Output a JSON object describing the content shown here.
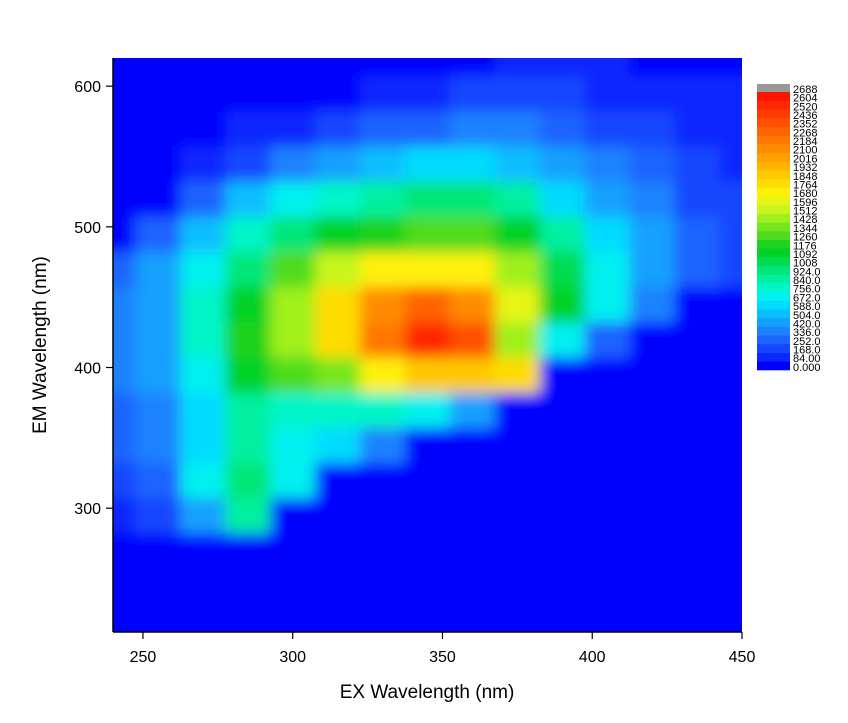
{
  "chart_data": {
    "type": "contour",
    "x_label": "EX Wavelength (nm)",
    "y_label": "EM Wavelength (nm)",
    "xlim": [
      240,
      450
    ],
    "ylim": [
      212,
      620
    ],
    "xticks": [
      250,
      300,
      350,
      400,
      450
    ],
    "yticks": [
      300,
      400,
      500,
      600
    ],
    "x": [
      240,
      255,
      270,
      285,
      300,
      315,
      330,
      345,
      360,
      375,
      390,
      405,
      420,
      435,
      450
    ],
    "y": [
      220,
      245,
      270,
      295,
      320,
      345,
      370,
      395,
      420,
      445,
      470,
      495,
      520,
      545,
      570,
      595,
      620
    ],
    "z": [
      [
        20,
        20,
        20,
        20,
        20,
        20,
        20,
        20,
        20,
        20,
        20,
        20,
        20,
        20,
        20
      ],
      [
        20,
        20,
        20,
        20,
        20,
        20,
        20,
        20,
        20,
        20,
        20,
        20,
        20,
        20,
        20
      ],
      [
        20,
        20,
        20,
        20,
        20,
        20,
        20,
        20,
        20,
        20,
        20,
        20,
        20,
        20,
        20
      ],
      [
        150,
        200,
        500,
        900,
        20,
        20,
        20,
        20,
        20,
        20,
        20,
        20,
        20,
        20,
        20
      ],
      [
        250,
        300,
        700,
        1000,
        700,
        20,
        20,
        20,
        20,
        20,
        20,
        20,
        20,
        20,
        20
      ],
      [
        300,
        350,
        600,
        900,
        700,
        600,
        400,
        20,
        20,
        20,
        20,
        20,
        20,
        20,
        20
      ],
      [
        300,
        400,
        600,
        850,
        800,
        800,
        800,
        700,
        500,
        20,
        20,
        20,
        20,
        20,
        20
      ],
      [
        350,
        450,
        700,
        1100,
        1300,
        1400,
        1700,
        1900,
        1900,
        1800,
        20,
        20,
        20,
        20,
        20
      ],
      [
        400,
        500,
        800,
        1200,
        1500,
        1800,
        2200,
        2550,
        2400,
        1500,
        700,
        300,
        20,
        20,
        20
      ],
      [
        400,
        500,
        800,
        1100,
        1450,
        1800,
        2150,
        2300,
        2100,
        1600,
        1100,
        700,
        400,
        20,
        20
      ],
      [
        300,
        450,
        700,
        1000,
        1300,
        1550,
        1700,
        1750,
        1700,
        1450,
        1050,
        750,
        500,
        300,
        200
      ],
      [
        20,
        300,
        550,
        800,
        1000,
        1150,
        1250,
        1300,
        1300,
        1150,
        900,
        650,
        450,
        300,
        200
      ],
      [
        20,
        20,
        300,
        550,
        700,
        800,
        900,
        950,
        950,
        850,
        650,
        480,
        350,
        250,
        180
      ],
      [
        20,
        20,
        120,
        250,
        400,
        500,
        560,
        600,
        620,
        560,
        450,
        350,
        260,
        200,
        150
      ],
      [
        20,
        20,
        80,
        100,
        150,
        200,
        280,
        330,
        360,
        340,
        290,
        240,
        190,
        150,
        120
      ],
      [
        20,
        20,
        60,
        60,
        70,
        80,
        100,
        130,
        170,
        180,
        170,
        150,
        120,
        100,
        90
      ],
      [
        20,
        20,
        40,
        40,
        40,
        40,
        50,
        60,
        80,
        90,
        100,
        90,
        80,
        70,
        60
      ]
    ],
    "colorbar": {
      "ticks": [
        {
          "value": 0,
          "label": "0.000"
        },
        {
          "value": 84,
          "label": "84.00"
        },
        {
          "value": 168,
          "label": "168.0"
        },
        {
          "value": 252,
          "label": "252.0"
        },
        {
          "value": 336,
          "label": "336.0"
        },
        {
          "value": 420,
          "label": "420.0"
        },
        {
          "value": 504,
          "label": "504.0"
        },
        {
          "value": 588,
          "label": "588.0"
        },
        {
          "value": 672,
          "label": "672.0"
        },
        {
          "value": 756,
          "label": "756.0"
        },
        {
          "value": 840,
          "label": "840.0"
        },
        {
          "value": 924,
          "label": "924.0"
        },
        1008,
        1092,
        1176,
        1260,
        1344,
        1428,
        1512,
        1596,
        1680,
        1764,
        1848,
        1932,
        2016,
        2100,
        2184,
        2268,
        2352,
        2436,
        2520,
        2604,
        2688
      ],
      "colors": [
        "#0000ff",
        "#0a28ff",
        "#1446ff",
        "#1e64ff",
        "#1e82ff",
        "#14a0ff",
        "#0abeff",
        "#00dcff",
        "#00f0f0",
        "#00f5c8",
        "#00f0a0",
        "#00e678",
        "#00dc50",
        "#00d228",
        "#1ed21e",
        "#50dc1e",
        "#78e61e",
        "#a0f01e",
        "#c8f51e",
        "#e6f514",
        "#fff00a",
        "#ffdc00",
        "#ffc800",
        "#ffb400",
        "#ffa000",
        "#ff8c00",
        "#ff7800",
        "#ff6400",
        "#ff5000",
        "#ff3c00",
        "#ff2800",
        "#ff1400",
        "#999999"
      ]
    }
  }
}
